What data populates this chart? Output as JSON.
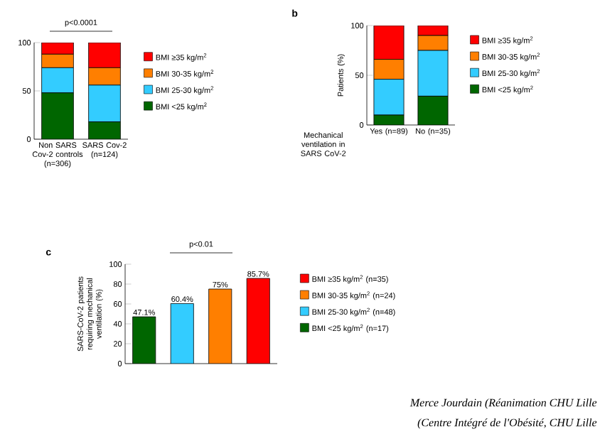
{
  "chart_data": [
    {
      "type": "bar",
      "stacked": true,
      "categories": [
        "Non SARS Cov-2 controls (n=306)",
        "SARS Cov-2 (n=124)"
      ],
      "series": [
        {
          "name": "BMI <25 kg/m$^{2}$",
          "color": "#006600",
          "values": [
            48,
            18
          ]
        },
        {
          "name": "BMI 25-30 kg/m$^{2}$",
          "color": "#33ccff",
          "values": [
            26,
            38
          ]
        },
        {
          "name": "BMI 30-35 kg/m$^{2}$",
          "color": "#ff7f00",
          "values": [
            14,
            18
          ]
        },
        {
          "name": "BMI ≥35 kg/m$^{2}$",
          "color": "#ff0000",
          "values": [
            12,
            26
          ]
        }
      ],
      "ylim": [
        0,
        100
      ],
      "yticks": [
        0,
        50,
        100
      ],
      "legend": "right",
      "annotations": [
        "p<0.0001"
      ]
    },
    {
      "type": "bar",
      "stacked": true,
      "title": "b",
      "ylabel": "Patients (%)",
      "xlabel": "Mechanical ventilation in SARS CoV-2",
      "categories": [
        "Yes (n=89)",
        "No (n=35)"
      ],
      "series": [
        {
          "name": "BMI <25 kg/m$^{2}$",
          "color": "#006600",
          "values": [
            10,
            29
          ]
        },
        {
          "name": "BMI 25-30 kg/m$^{2}$",
          "color": "#33ccff",
          "values": [
            36,
            46
          ]
        },
        {
          "name": "BMI 30-35 kg/m$^{2}$",
          "color": "#ff7f00",
          "values": [
            20,
            15
          ]
        },
        {
          "name": "BMI ≥35 kg/m$^{2}$",
          "color": "#ff0000",
          "values": [
            34,
            10
          ]
        }
      ],
      "ylim": [
        0,
        100
      ],
      "yticks": [
        0,
        50,
        100
      ],
      "legend": "right"
    },
    {
      "type": "bar",
      "title": "c",
      "ylabel": "SARS-CoV-2 patients requiring mechanical ventilation (%)",
      "categories": [
        null,
        null,
        null,
        null
      ],
      "series": [
        {
          "name": "BMI ≥35 kg/m$^{2}$ (n=35)",
          "color": "#ff0000",
          "values": [
            null,
            null,
            null,
            85.7
          ],
          "value_labels": [
            null,
            null,
            null,
            "85.7%"
          ]
        },
        {
          "name": "BMI 30-35 kg/m$^{2}$ (n=24)",
          "color": "#ff7f00",
          "values": [
            null,
            null,
            75,
            null
          ],
          "value_labels": [
            null,
            null,
            "75%",
            null
          ]
        },
        {
          "name": "BMI 25-30 kg/m$^{2}$ (n=48)",
          "color": "#33ccff",
          "values": [
            null,
            60.4,
            null,
            null
          ],
          "value_labels": [
            null,
            "60.4%",
            null,
            null
          ]
        },
        {
          "name": "BMI <25 kg/m$^{2}$ (n=17)",
          "color": "#006600",
          "values": [
            47.1,
            null,
            null,
            null
          ],
          "value_labels": [
            "47.1%",
            null,
            null,
            null
          ]
        }
      ],
      "ylim": [
        0,
        100
      ],
      "yticks": [
        0,
        20,
        40,
        60,
        80,
        100
      ],
      "legend": "right",
      "annotations": [
        "p<0.01",
        "Merce Jourdain (Réanimation CHU Lille",
        "(Centre Intégré de l'Obésité, CHU Lille"
      ]
    }
  ]
}
